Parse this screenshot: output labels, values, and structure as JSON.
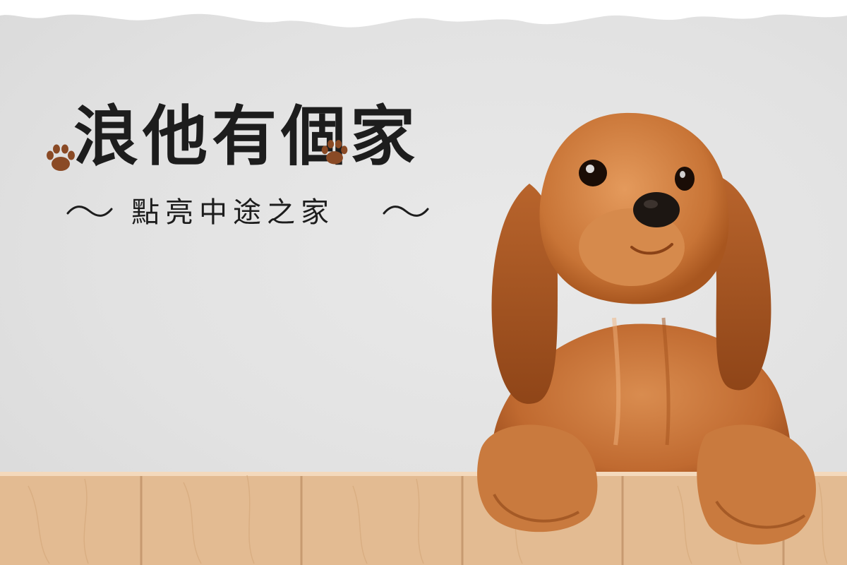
{
  "title": "浪他有個家",
  "subtitle": "點亮中途之家",
  "colors": {
    "wall": "#e3e3e3",
    "text": "#1d1d1d",
    "paw": "#8a4a25",
    "fur": "#c8743a",
    "wood": "#e6bf98"
  },
  "icons": [
    "paw-print-icon",
    "tilde-ornament-icon"
  ]
}
